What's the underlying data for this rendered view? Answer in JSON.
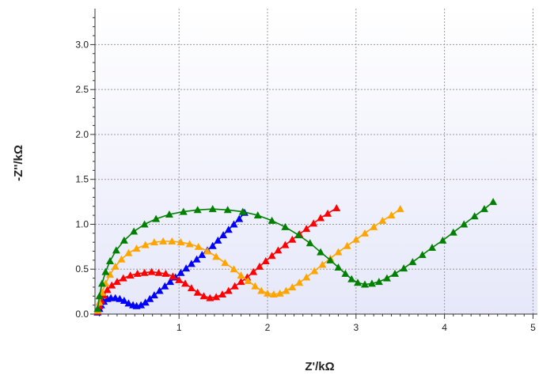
{
  "chart_data": {
    "type": "scatter",
    "title": "",
    "xlabel": "Z'/kΩ",
    "ylabel": "-Z''/kΩ",
    "xlim": [
      0.05,
      5.05
    ],
    "ylim": [
      0,
      3.4
    ],
    "xticks": [
      1,
      2,
      3,
      4,
      5
    ],
    "xtick_labels": [
      "1",
      "2",
      "3",
      "4",
      "5"
    ],
    "yticks": [
      0,
      0.5,
      1,
      1.5,
      2,
      2.5,
      3
    ],
    "ytick_labels": [
      "0.0",
      "0.5",
      "1.0",
      "1.5",
      "2.0",
      "2.5",
      "3.0"
    ],
    "grid": true,
    "marker": "triangle",
    "series": [
      {
        "color": "#0000ff",
        "points": [
          [
            0.08,
            0.02
          ],
          [
            0.1,
            0.06
          ],
          [
            0.12,
            0.1
          ],
          [
            0.15,
            0.14
          ],
          [
            0.19,
            0.17
          ],
          [
            0.23,
            0.18
          ],
          [
            0.28,
            0.18
          ],
          [
            0.33,
            0.17
          ],
          [
            0.38,
            0.15
          ],
          [
            0.43,
            0.12
          ],
          [
            0.48,
            0.1
          ],
          [
            0.52,
            0.09
          ],
          [
            0.57,
            0.1
          ],
          [
            0.62,
            0.13
          ],
          [
            0.67,
            0.17
          ],
          [
            0.72,
            0.21
          ],
          [
            0.78,
            0.26
          ],
          [
            0.84,
            0.31
          ],
          [
            0.9,
            0.36
          ],
          [
            0.96,
            0.41
          ],
          [
            1.02,
            0.46
          ],
          [
            1.08,
            0.51
          ],
          [
            1.14,
            0.56
          ],
          [
            1.2,
            0.61
          ],
          [
            1.26,
            0.66
          ],
          [
            1.32,
            0.71
          ],
          [
            1.38,
            0.76
          ],
          [
            1.44,
            0.82
          ],
          [
            1.5,
            0.88
          ],
          [
            1.56,
            0.94
          ],
          [
            1.62,
            1.0
          ],
          [
            1.68,
            1.06
          ],
          [
            1.74,
            1.13
          ]
        ]
      },
      {
        "color": "#ff0000",
        "points": [
          [
            0.08,
            0.03
          ],
          [
            0.1,
            0.09
          ],
          [
            0.12,
            0.15
          ],
          [
            0.15,
            0.21
          ],
          [
            0.19,
            0.27
          ],
          [
            0.24,
            0.32
          ],
          [
            0.3,
            0.36
          ],
          [
            0.37,
            0.4
          ],
          [
            0.45,
            0.43
          ],
          [
            0.53,
            0.45
          ],
          [
            0.61,
            0.46
          ],
          [
            0.69,
            0.47
          ],
          [
            0.77,
            0.46
          ],
          [
            0.85,
            0.45
          ],
          [
            0.93,
            0.42
          ],
          [
            1.0,
            0.38
          ],
          [
            1.07,
            0.34
          ],
          [
            1.14,
            0.29
          ],
          [
            1.21,
            0.24
          ],
          [
            1.28,
            0.2
          ],
          [
            1.35,
            0.18
          ],
          [
            1.42,
            0.19
          ],
          [
            1.49,
            0.22
          ],
          [
            1.56,
            0.26
          ],
          [
            1.63,
            0.31
          ],
          [
            1.7,
            0.36
          ],
          [
            1.77,
            0.41
          ],
          [
            1.84,
            0.47
          ],
          [
            1.91,
            0.53
          ],
          [
            1.98,
            0.59
          ],
          [
            2.05,
            0.65
          ],
          [
            2.12,
            0.71
          ],
          [
            2.2,
            0.77
          ],
          [
            2.28,
            0.83
          ],
          [
            2.36,
            0.89
          ],
          [
            2.44,
            0.95
          ],
          [
            2.52,
            1.01
          ],
          [
            2.6,
            1.07
          ],
          [
            2.68,
            1.12
          ],
          [
            2.78,
            1.18
          ]
        ]
      },
      {
        "color": "#ffa500",
        "points": [
          [
            0.08,
            0.04
          ],
          [
            0.1,
            0.13
          ],
          [
            0.13,
            0.24
          ],
          [
            0.17,
            0.34
          ],
          [
            0.22,
            0.44
          ],
          [
            0.28,
            0.53
          ],
          [
            0.35,
            0.61
          ],
          [
            0.43,
            0.68
          ],
          [
            0.52,
            0.73
          ],
          [
            0.62,
            0.77
          ],
          [
            0.72,
            0.8
          ],
          [
            0.82,
            0.81
          ],
          [
            0.92,
            0.81
          ],
          [
            1.02,
            0.8
          ],
          [
            1.12,
            0.78
          ],
          [
            1.22,
            0.75
          ],
          [
            1.32,
            0.7
          ],
          [
            1.42,
            0.64
          ],
          [
            1.52,
            0.57
          ],
          [
            1.62,
            0.5
          ],
          [
            1.7,
            0.43
          ],
          [
            1.78,
            0.37
          ],
          [
            1.86,
            0.31
          ],
          [
            1.93,
            0.26
          ],
          [
            2.0,
            0.23
          ],
          [
            2.07,
            0.22
          ],
          [
            2.14,
            0.23
          ],
          [
            2.21,
            0.26
          ],
          [
            2.28,
            0.3
          ],
          [
            2.36,
            0.35
          ],
          [
            2.44,
            0.41
          ],
          [
            2.53,
            0.48
          ],
          [
            2.62,
            0.55
          ],
          [
            2.71,
            0.62
          ],
          [
            2.8,
            0.69
          ],
          [
            2.9,
            0.76
          ],
          [
            3.0,
            0.83
          ],
          [
            3.1,
            0.9
          ],
          [
            3.2,
            0.97
          ],
          [
            3.3,
            1.04
          ],
          [
            3.4,
            1.1
          ],
          [
            3.5,
            1.17
          ]
        ]
      },
      {
        "color": "#008000",
        "points": [
          [
            0.08,
            0.06
          ],
          [
            0.1,
            0.2
          ],
          [
            0.13,
            0.34
          ],
          [
            0.17,
            0.47
          ],
          [
            0.22,
            0.59
          ],
          [
            0.29,
            0.71
          ],
          [
            0.38,
            0.82
          ],
          [
            0.49,
            0.92
          ],
          [
            0.61,
            1.0
          ],
          [
            0.74,
            1.06
          ],
          [
            0.89,
            1.11
          ],
          [
            1.05,
            1.14
          ],
          [
            1.21,
            1.16
          ],
          [
            1.38,
            1.17
          ],
          [
            1.55,
            1.16
          ],
          [
            1.72,
            1.14
          ],
          [
            1.89,
            1.1
          ],
          [
            2.05,
            1.04
          ],
          [
            2.2,
            0.97
          ],
          [
            2.35,
            0.88
          ],
          [
            2.48,
            0.79
          ],
          [
            2.6,
            0.69
          ],
          [
            2.71,
            0.6
          ],
          [
            2.8,
            0.52
          ],
          [
            2.88,
            0.45
          ],
          [
            2.95,
            0.39
          ],
          [
            3.02,
            0.35
          ],
          [
            3.1,
            0.33
          ],
          [
            3.18,
            0.34
          ],
          [
            3.26,
            0.36
          ],
          [
            3.35,
            0.4
          ],
          [
            3.44,
            0.45
          ],
          [
            3.54,
            0.51
          ],
          [
            3.64,
            0.58
          ],
          [
            3.75,
            0.66
          ],
          [
            3.86,
            0.74
          ],
          [
            3.98,
            0.82
          ],
          [
            4.1,
            0.91
          ],
          [
            4.22,
            1.0
          ],
          [
            4.34,
            1.09
          ],
          [
            4.45,
            1.17
          ],
          [
            4.55,
            1.25
          ]
        ]
      }
    ]
  }
}
